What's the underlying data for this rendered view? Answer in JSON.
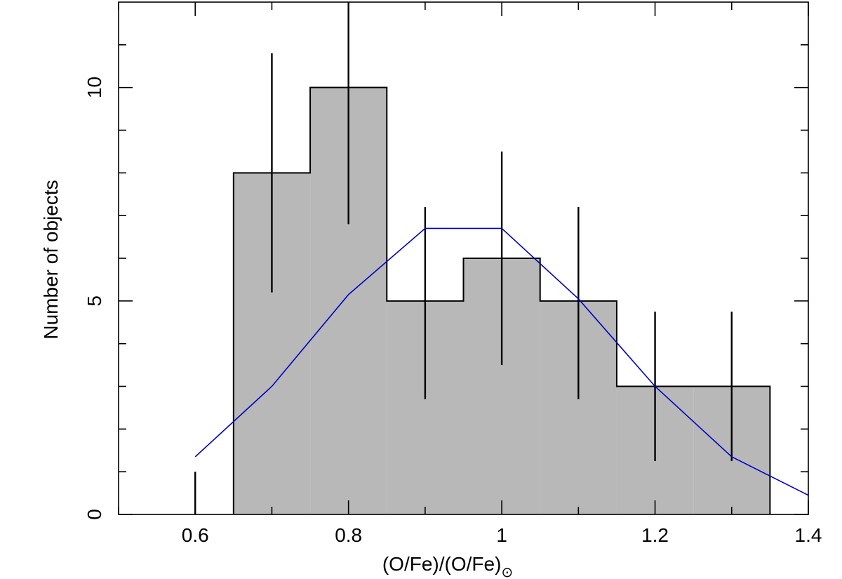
{
  "chart_data": {
    "type": "bar",
    "title": "",
    "xlabel": "(O/Fe)/(O/Fe)",
    "xlabel_subscript": "⊙",
    "ylabel": "Number of objects",
    "xlim": [
      0.5,
      1.4
    ],
    "ylim": [
      0,
      12
    ],
    "grid": false,
    "x_ticks": [
      0.6,
      0.8,
      1.0,
      1.2,
      1.4
    ],
    "x_tick_labels": [
      "0.6",
      "0.8",
      "1",
      "1.2",
      "1.4"
    ],
    "x_minor_ticks": [
      0.5,
      0.7,
      0.9,
      1.1,
      1.3
    ],
    "y_ticks": [
      0,
      5,
      10
    ],
    "y_tick_labels": [
      "0",
      "5",
      "10"
    ],
    "y_minor_ticks": [
      1,
      2,
      3,
      4,
      6,
      7,
      8,
      9,
      11
    ],
    "histogram": {
      "bin_edges": [
        0.65,
        0.75,
        0.85,
        0.95,
        1.05,
        1.15,
        1.25,
        1.35
      ],
      "counts": [
        8,
        10,
        5,
        6,
        5,
        3,
        3
      ],
      "fill_color": "#b8b8b8",
      "edge_color": "#000000"
    },
    "error_bars": [
      {
        "x": 0.6,
        "low": 0,
        "high": 1
      },
      {
        "x": 0.7,
        "low": 5.2,
        "high": 10.8
      },
      {
        "x": 0.8,
        "low": 6.8,
        "high": 12.0
      },
      {
        "x": 0.9,
        "low": 2.7,
        "high": 7.2
      },
      {
        "x": 1.0,
        "low": 3.5,
        "high": 8.5
      },
      {
        "x": 1.1,
        "low": 2.7,
        "high": 7.2
      },
      {
        "x": 1.2,
        "low": 1.25,
        "high": 4.75
      },
      {
        "x": 1.3,
        "low": 1.25,
        "high": 4.75
      }
    ],
    "model_curve": {
      "color": "#0000cc",
      "x": [
        0.6,
        0.7,
        0.8,
        0.9,
        1.0,
        1.1,
        1.2,
        1.3,
        1.4
      ],
      "y": [
        1.35,
        3.0,
        5.15,
        6.7,
        6.7,
        5.05,
        3.0,
        1.35,
        0.45
      ]
    }
  }
}
